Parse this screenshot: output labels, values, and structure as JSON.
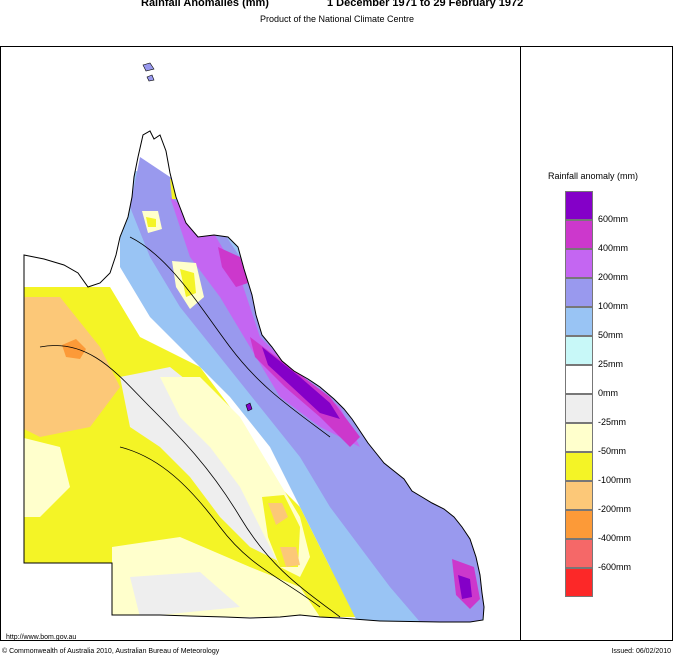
{
  "header": {
    "title_left": "Rainfall Anomalies (mm)",
    "title_right": "1 December 1971 to 29 February 1972",
    "subtitle": "Product of the National Climate Centre"
  },
  "legend": {
    "title": "Rainfall anomaly (mm)",
    "swatch_colors": [
      "#8400c8",
      "#cc38cc",
      "#c466f2",
      "#9999ee",
      "#99c4f4",
      "#c8f8f8",
      "#ffffff",
      "#eeeeee",
      "#ffffcc",
      "#f4f426",
      "#fcc878",
      "#fc9a38",
      "#f56868",
      "#fc2828"
    ],
    "ticks": [
      "600mm",
      "400mm",
      "200mm",
      "100mm",
      "50mm",
      "25mm",
      "0mm",
      "-25mm",
      "-50mm",
      "-100mm",
      "-200mm",
      "-400mm",
      "-600mm"
    ]
  },
  "footer": {
    "url": "http://www.bom.gov.au",
    "copyright": "© Commonwealth of Australia 2010, Australian Bureau of Meteorology",
    "issued": "Issued: 06/02/2010"
  }
}
